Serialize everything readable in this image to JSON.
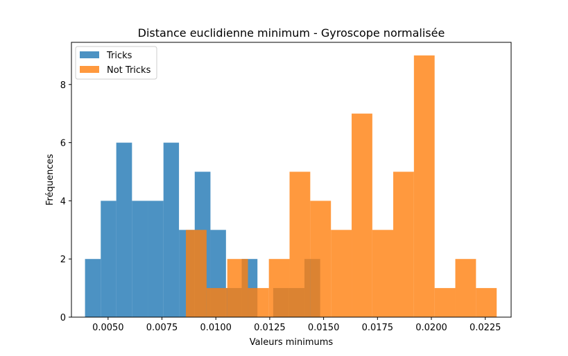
{
  "chart_data": {
    "type": "bar",
    "title": "Distance euclidienne minimum - Gyroscope normalisée",
    "xlabel": "Valeurs minimums",
    "ylabel": "Fréquences",
    "xlim": [
      0.0033,
      0.0237
    ],
    "ylim": [
      0,
      9.45
    ],
    "x_ticks": [
      0.005,
      0.0075,
      0.01,
      0.0125,
      0.015,
      0.0175,
      0.02,
      0.0225
    ],
    "x_tick_labels": [
      "0.0050",
      "0.0075",
      "0.0100",
      "0.0125",
      "0.0150",
      "0.0175",
      "0.0200",
      "0.0225"
    ],
    "y_ticks": [
      0,
      2,
      4,
      6,
      8
    ],
    "y_tick_labels": [
      "0",
      "2",
      "4",
      "6",
      "8"
    ],
    "grid": false,
    "legend_position": "top-left",
    "series": [
      {
        "name": "Tricks",
        "color": "#1f77b4",
        "opacity": 0.8,
        "bin_edges": [
          0.00393,
          0.00466,
          0.00538,
          0.00611,
          0.00684,
          0.00757,
          0.00829,
          0.00902,
          0.00975,
          0.01047,
          0.0112,
          0.01193,
          0.01266,
          0.01338,
          0.01411,
          0.01484
        ],
        "counts": [
          2,
          4,
          6,
          4,
          4,
          6,
          3,
          5,
          3,
          1,
          2,
          0,
          1,
          1,
          2
        ]
      },
      {
        "name": "Not Tricks",
        "color": "#ff7f0e",
        "opacity": 0.8,
        "bin_edges": [
          0.00861,
          0.00957,
          0.01053,
          0.01149,
          0.01246,
          0.01342,
          0.01438,
          0.01534,
          0.0163,
          0.01726,
          0.01823,
          0.01919,
          0.02015,
          0.02111,
          0.02207,
          0.02303
        ],
        "counts": [
          3,
          1,
          2,
          1,
          2,
          5,
          4,
          3,
          7,
          3,
          5,
          9,
          1,
          2,
          1
        ]
      }
    ]
  }
}
